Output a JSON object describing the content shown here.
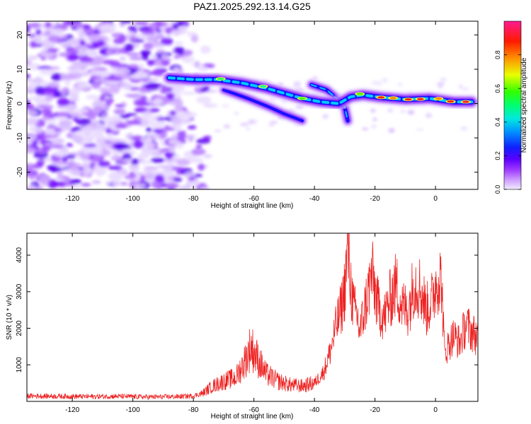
{
  "title": "PAZ1.2025.292.13.14.G25",
  "chart_data": [
    {
      "type": "heatmap",
      "xlabel": "Height of straight line (km)",
      "ylabel": "Frequency (Hz)",
      "xlim": [
        -135,
        14
      ],
      "ylim": [
        -25,
        24
      ],
      "xticks": [
        -120,
        -100,
        -80,
        -60,
        -40,
        -20,
        0
      ],
      "yticks": [
        -20,
        -10,
        0,
        10,
        20
      ],
      "colorbar": {
        "label": "Normalized spectral amplitude",
        "range": [
          0,
          1
        ],
        "ticks": [
          0.0,
          0.2,
          0.4,
          0.6,
          0.8
        ],
        "colormap": [
          "#f0e6ff",
          "#d9b3ff",
          "#a040ff",
          "#6a00ff",
          "#2010ff",
          "#0060ff",
          "#00d0ff",
          "#00ff80",
          "#40ff00",
          "#ffff00",
          "#ff8000",
          "#ff0000",
          "#ff1080"
        ]
      },
      "ridge": [
        {
          "x": -88,
          "f": 7.5
        },
        {
          "x": -80,
          "f": 7.0
        },
        {
          "x": -72,
          "f": 7.0
        },
        {
          "x": -64,
          "f": 6.0
        },
        {
          "x": -56,
          "f": 4.5
        },
        {
          "x": -50,
          "f": 3.0
        },
        {
          "x": -44,
          "f": 1.5
        },
        {
          "x": -38,
          "f": 0.5
        },
        {
          "x": -32,
          "f": 0.0
        },
        {
          "x": -28,
          "f": 2.0
        },
        {
          "x": -24,
          "f": 2.5
        },
        {
          "x": -18,
          "f": 1.8
        },
        {
          "x": -10,
          "f": 1.2
        },
        {
          "x": -2,
          "f": 1.5
        },
        {
          "x": 6,
          "f": 0.5
        },
        {
          "x": 12,
          "f": 0.5
        }
      ],
      "secondary_ridge": [
        {
          "x": -70,
          "f": 4.0
        },
        {
          "x": -62,
          "f": 1.5
        },
        {
          "x": -55,
          "f": -1.0
        },
        {
          "x": -50,
          "f": -3.0
        },
        {
          "x": -44,
          "f": -5.0
        }
      ],
      "side_branch": [
        {
          "x": -41,
          "f": 5.5
        },
        {
          "x": -36,
          "f": 4.0
        },
        {
          "x": -32,
          "f": 1.0
        },
        {
          "x": -30,
          "f": -1.0
        },
        {
          "x": -29,
          "f": -5.0
        }
      ]
    },
    {
      "type": "line",
      "xlabel": "Height of straight line (km)",
      "ylabel": "SNR (10 * v/v)",
      "xlim": [
        -135,
        14
      ],
      "ylim": [
        0,
        4600
      ],
      "xticks": [
        -120,
        -100,
        -80,
        -60,
        -40,
        -20,
        0
      ],
      "yticks": [
        1000,
        2000,
        3000,
        4000
      ],
      "series": [
        {
          "name": "SNR",
          "color": "#ee2222",
          "x": [
            -135,
            -125,
            -115,
            -105,
            -95,
            -85,
            -80,
            -77,
            -74,
            -70,
            -66,
            -63,
            -61,
            -59,
            -56,
            -52,
            -48,
            -44,
            -40,
            -37,
            -35,
            -33,
            -31,
            -30,
            -29,
            -28,
            -27,
            -26,
            -25,
            -23,
            -21,
            -19,
            -17,
            -15,
            -13,
            -11,
            -9,
            -7,
            -5,
            -3,
            -1,
            0,
            1,
            2,
            3,
            4,
            6,
            8,
            10,
            12,
            14
          ],
          "values": [
            150,
            140,
            130,
            140,
            120,
            130,
            150,
            220,
            400,
            550,
            650,
            1100,
            1500,
            1200,
            750,
            550,
            450,
            420,
            500,
            800,
            1300,
            2000,
            2600,
            3100,
            4200,
            3200,
            2500,
            2400,
            1900,
            2700,
            3500,
            2600,
            2300,
            2800,
            3200,
            2600,
            2500,
            3300,
            3100,
            2500,
            2800,
            3200,
            3400,
            3300,
            1300,
            1500,
            1800,
            1600,
            2100,
            1900,
            1750
          ]
        }
      ]
    }
  ]
}
